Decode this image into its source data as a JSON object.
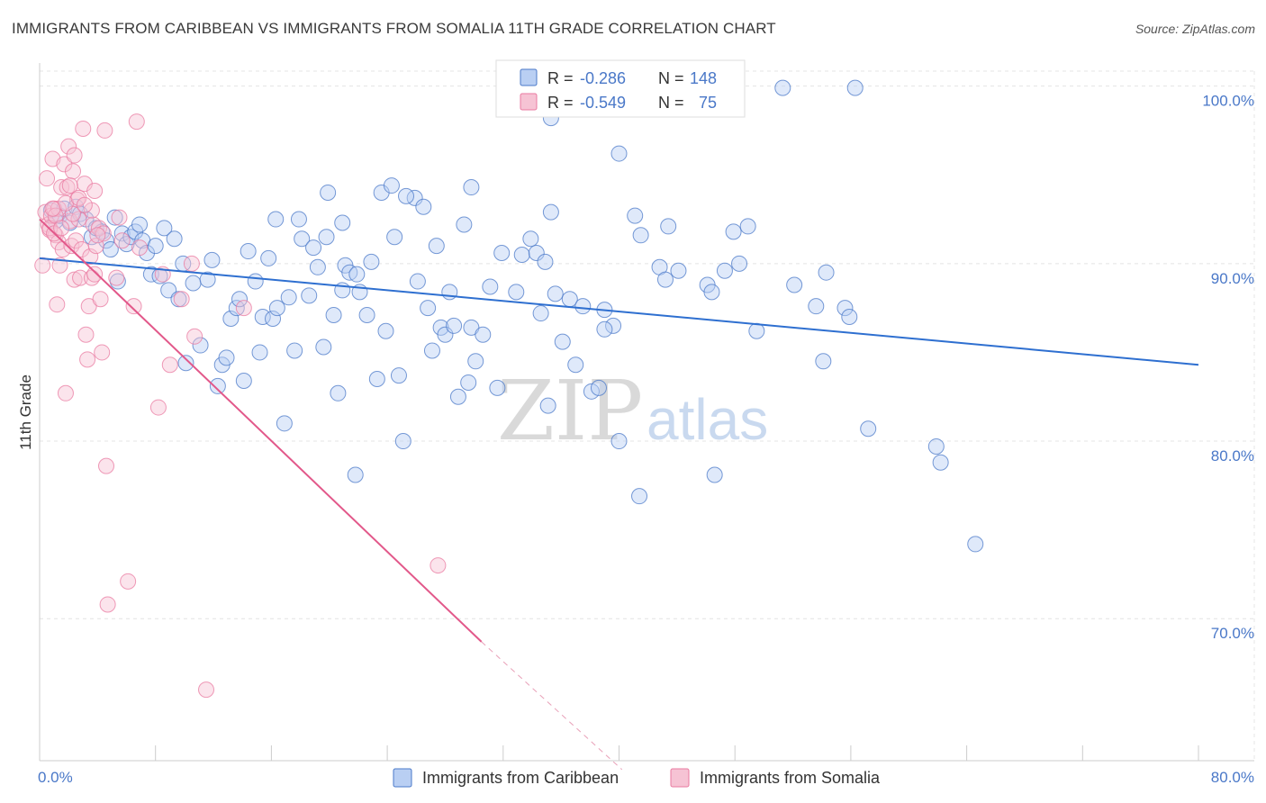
{
  "title": "IMMIGRANTS FROM CARIBBEAN VS IMMIGRANTS FROM SOMALIA 11TH GRADE CORRELATION CHART",
  "source": "Source: ZipAtlas.com",
  "watermark": {
    "zip": "ZIP",
    "atlas": "atlas"
  },
  "colors": {
    "blue": "#4a78c8",
    "blue_fill": "#b9cff3",
    "blue_line": "#2e6fd0",
    "pink": "#e97aa0",
    "pink_fill": "#f6c3d4",
    "pink_line": "#e2588a"
  },
  "legend_box": {
    "rows": [
      {
        "r_label": "R = ",
        "r_value": "-0.286",
        "n_label": "N = ",
        "n_value": "148"
      },
      {
        "r_label": "R = ",
        "r_value": "-0.549",
        "n_label": "N = ",
        "n_value": "75"
      }
    ]
  },
  "chart_data": {
    "type": "scatter",
    "title": "IMMIGRANTS FROM CARIBBEAN VS IMMIGRANTS FROM SOMALIA 11TH GRADE CORRELATION CHART",
    "xlabel": "",
    "ylabel": "11th Grade",
    "xlim": [
      0,
      80
    ],
    "ylim": [
      62,
      102
    ],
    "x_tick_labels": [
      "0.0%",
      "80.0%"
    ],
    "y_ticks": [
      {
        "value": 100,
        "label": "100.0%"
      },
      {
        "value": 90,
        "label": "90.0%"
      },
      {
        "value": 80,
        "label": "80.0%"
      },
      {
        "value": 70,
        "label": "70.0%"
      }
    ],
    "grid": true,
    "legend_position": "bottom",
    "series": [
      {
        "name": "Immigrants from Caribbean",
        "color": "#4a78c8",
        "r": -0.286,
        "n": 148,
        "trend": {
          "x": [
            0,
            80
          ],
          "y": [
            90.3,
            84.3
          ]
        },
        "points": [
          [
            0.8,
            93
          ],
          [
            1.1,
            92.4
          ],
          [
            1.4,
            92.7
          ],
          [
            1.7,
            93.1
          ],
          [
            2.1,
            92.3
          ],
          [
            2.5,
            93.2
          ],
          [
            2.8,
            92.8
          ],
          [
            3.2,
            92.5
          ],
          [
            3.6,
            91.5
          ],
          [
            3.9,
            92.0
          ],
          [
            4.3,
            91.8
          ],
          [
            4.6,
            91.3
          ],
          [
            4.9,
            90.8
          ],
          [
            5.2,
            92.6
          ],
          [
            5.4,
            89.0
          ],
          [
            5.7,
            91.7
          ],
          [
            6.0,
            91.1
          ],
          [
            6.3,
            91.5
          ],
          [
            6.6,
            91.8
          ],
          [
            6.9,
            92.2
          ],
          [
            7.1,
            91.3
          ],
          [
            7.4,
            90.6
          ],
          [
            7.7,
            89.4
          ],
          [
            8.0,
            91.0
          ],
          [
            8.3,
            89.3
          ],
          [
            8.6,
            92.0
          ],
          [
            8.9,
            88.5
          ],
          [
            9.3,
            91.4
          ],
          [
            9.6,
            88.0
          ],
          [
            9.9,
            90.0
          ],
          [
            10.1,
            84.4
          ],
          [
            10.6,
            88.9
          ],
          [
            11.1,
            85.4
          ],
          [
            11.6,
            89.1
          ],
          [
            11.9,
            90.2
          ],
          [
            12.3,
            83.1
          ],
          [
            12.6,
            84.3
          ],
          [
            12.9,
            84.7
          ],
          [
            13.2,
            86.9
          ],
          [
            13.6,
            87.5
          ],
          [
            13.8,
            88.0
          ],
          [
            14.1,
            83.4
          ],
          [
            14.4,
            90.7
          ],
          [
            14.9,
            89.0
          ],
          [
            15.2,
            85.0
          ],
          [
            15.4,
            87.0
          ],
          [
            15.8,
            90.3
          ],
          [
            16.1,
            86.9
          ],
          [
            16.4,
            87.5
          ],
          [
            16.9,
            81.0
          ],
          [
            17.2,
            88.1
          ],
          [
            17.6,
            85.1
          ],
          [
            17.9,
            92.5
          ],
          [
            18.1,
            91.4
          ],
          [
            18.6,
            88.2
          ],
          [
            18.9,
            90.9
          ],
          [
            19.2,
            89.8
          ],
          [
            19.6,
            85.3
          ],
          [
            19.9,
            94.0
          ],
          [
            20.3,
            87.1
          ],
          [
            20.6,
            82.7
          ],
          [
            20.9,
            88.5
          ],
          [
            21.1,
            89.9
          ],
          [
            21.4,
            89.5
          ],
          [
            21.9,
            89.4
          ],
          [
            22.1,
            88.4
          ],
          [
            22.6,
            87.1
          ],
          [
            22.9,
            90.1
          ],
          [
            23.3,
            83.5
          ],
          [
            23.6,
            94.0
          ],
          [
            23.9,
            86.2
          ],
          [
            24.3,
            94.4
          ],
          [
            24.5,
            91.5
          ],
          [
            24.8,
            83.7
          ],
          [
            25.1,
            80.0
          ],
          [
            25.9,
            93.7
          ],
          [
            26.1,
            89.0
          ],
          [
            26.5,
            93.2
          ],
          [
            26.8,
            87.5
          ],
          [
            27.1,
            85.1
          ],
          [
            27.4,
            91.0
          ],
          [
            27.7,
            86.4
          ],
          [
            28.0,
            86.0
          ],
          [
            28.3,
            88.4
          ],
          [
            28.6,
            86.5
          ],
          [
            28.9,
            82.5
          ],
          [
            29.3,
            92.2
          ],
          [
            29.6,
            83.3
          ],
          [
            29.8,
            86.4
          ],
          [
            30.1,
            84.5
          ],
          [
            30.6,
            86.0
          ],
          [
            31.1,
            88.7
          ],
          [
            31.6,
            83.0
          ],
          [
            31.9,
            90.6
          ],
          [
            32.9,
            88.4
          ],
          [
            33.3,
            90.5
          ],
          [
            33.9,
            91.4
          ],
          [
            34.3,
            90.6
          ],
          [
            34.6,
            87.2
          ],
          [
            34.9,
            90.1
          ],
          [
            35.1,
            82.0
          ],
          [
            35.6,
            88.3
          ],
          [
            36.1,
            85.6
          ],
          [
            36.6,
            88.0
          ],
          [
            37.0,
            84.3
          ],
          [
            37.5,
            87.6
          ],
          [
            38.1,
            82.8
          ],
          [
            38.6,
            83.0
          ],
          [
            39.0,
            87.4
          ],
          [
            40.0,
            96.2
          ],
          [
            41.1,
            92.7
          ],
          [
            41.5,
            91.6
          ],
          [
            42.8,
            89.8
          ],
          [
            43.4,
            92.1
          ],
          [
            44.1,
            89.6
          ],
          [
            46.1,
            88.8
          ],
          [
            46.4,
            88.4
          ],
          [
            47.3,
            89.6
          ],
          [
            47.9,
            91.8
          ],
          [
            48.3,
            90.0
          ],
          [
            49.5,
            86.2
          ],
          [
            52.1,
            88.8
          ],
          [
            53.6,
            87.6
          ],
          [
            54.1,
            84.5
          ],
          [
            55.6,
            87.5
          ],
          [
            57.2,
            80.7
          ],
          [
            61.9,
            79.7
          ],
          [
            62.2,
            78.8
          ],
          [
            64.6,
            74.2
          ],
          [
            39.6,
            86.5
          ],
          [
            35.3,
            98.2
          ],
          [
            19.8,
            91.5
          ],
          [
            25.3,
            93.8
          ],
          [
            20.9,
            92.3
          ],
          [
            16.3,
            92.5
          ],
          [
            39.0,
            86.3
          ],
          [
            29.8,
            94.3
          ],
          [
            54.3,
            89.5
          ],
          [
            55.9,
            87.0
          ],
          [
            40.0,
            80.0
          ],
          [
            43.2,
            89.1
          ],
          [
            35.3,
            92.9
          ],
          [
            48.9,
            92.1
          ],
          [
            46.6,
            78.1
          ],
          [
            41.4,
            76.9
          ],
          [
            21.8,
            78.1
          ],
          [
            51.3,
            99.9
          ],
          [
            56.3,
            99.9
          ]
        ]
      },
      {
        "name": "Immigrants from Somalia",
        "color": "#e97aa0",
        "r": -0.549,
        "n": 75,
        "trend": {
          "x": [
            0,
            30.5
          ],
          "y": [
            92.5,
            68.7
          ]
        },
        "trend_dashed": {
          "x": [
            30.5,
            40.2
          ],
          "y": [
            68.7,
            61.5
          ]
        },
        "points": [
          [
            0.2,
            89.9
          ],
          [
            0.4,
            92.9
          ],
          [
            0.5,
            94.8
          ],
          [
            0.6,
            92.2
          ],
          [
            0.7,
            91.9
          ],
          [
            0.8,
            92.7
          ],
          [
            0.9,
            95.9
          ],
          [
            1.0,
            93.1
          ],
          [
            1.1,
            91.6
          ],
          [
            1.2,
            87.7
          ],
          [
            1.3,
            91.2
          ],
          [
            1.4,
            89.9
          ],
          [
            1.5,
            94.3
          ],
          [
            1.6,
            90.8
          ],
          [
            1.7,
            95.6
          ],
          [
            1.8,
            82.7
          ],
          [
            1.9,
            94.3
          ],
          [
            2.0,
            96.6
          ],
          [
            2.1,
            92.4
          ],
          [
            2.2,
            91.0
          ],
          [
            2.3,
            95.2
          ],
          [
            2.4,
            89.1
          ],
          [
            2.5,
            91.3
          ],
          [
            2.6,
            93.6
          ],
          [
            2.7,
            92.5
          ],
          [
            2.8,
            89.2
          ],
          [
            2.9,
            90.8
          ],
          [
            3.0,
            97.6
          ],
          [
            3.1,
            94.5
          ],
          [
            3.2,
            86.0
          ],
          [
            3.3,
            84.6
          ],
          [
            3.4,
            87.6
          ],
          [
            3.5,
            90.4
          ],
          [
            3.6,
            89.2
          ],
          [
            3.7,
            92.2
          ],
          [
            3.8,
            94.1
          ],
          [
            3.9,
            91.0
          ],
          [
            4.1,
            92.0
          ],
          [
            4.2,
            88.0
          ],
          [
            4.3,
            85.0
          ],
          [
            4.4,
            91.7
          ],
          [
            4.5,
            97.5
          ],
          [
            4.6,
            78.6
          ],
          [
            4.7,
            70.8
          ],
          [
            5.3,
            89.2
          ],
          [
            5.7,
            91.3
          ],
          [
            6.1,
            72.1
          ],
          [
            6.5,
            87.6
          ],
          [
            6.7,
            98.0
          ],
          [
            6.9,
            90.9
          ],
          [
            8.2,
            81.9
          ],
          [
            8.5,
            89.4
          ],
          [
            9.0,
            84.3
          ],
          [
            9.8,
            88.0
          ],
          [
            10.5,
            90.0
          ],
          [
            10.7,
            85.9
          ],
          [
            11.5,
            66.0
          ],
          [
            14.1,
            87.5
          ],
          [
            27.5,
            73.0
          ],
          [
            1.3,
            93.1
          ],
          [
            2.3,
            92.8
          ],
          [
            0.7,
            92.0
          ],
          [
            1.0,
            91.7
          ],
          [
            2.4,
            96.1
          ],
          [
            3.6,
            93.0
          ],
          [
            1.8,
            93.4
          ],
          [
            2.7,
            93.7
          ],
          [
            3.1,
            93.3
          ],
          [
            1.1,
            92.7
          ],
          [
            0.9,
            93.1
          ],
          [
            2.1,
            94.4
          ],
          [
            1.5,
            92.0
          ],
          [
            3.8,
            89.4
          ],
          [
            4.0,
            91.6
          ],
          [
            5.5,
            92.6
          ]
        ]
      }
    ]
  }
}
